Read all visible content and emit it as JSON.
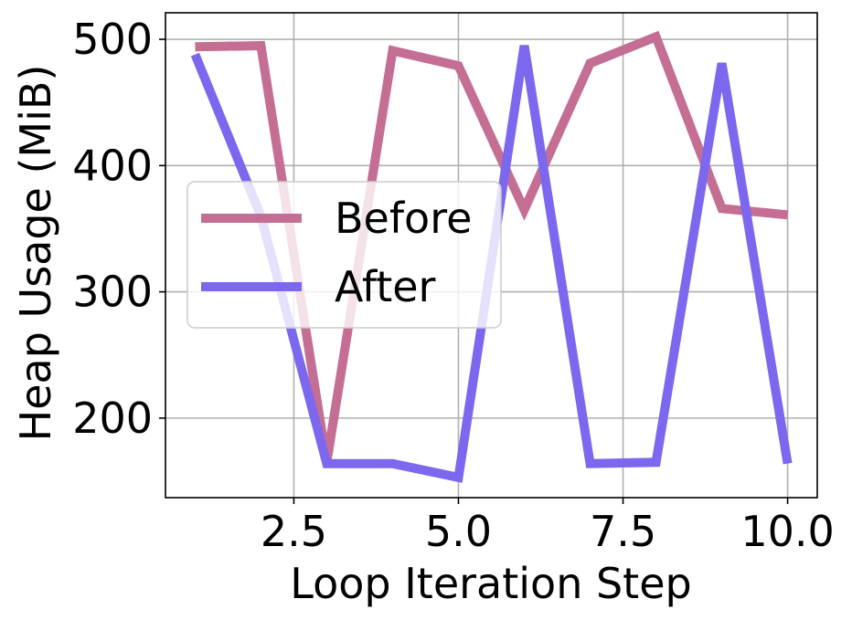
{
  "chart_data": {
    "type": "line",
    "title": "",
    "xlabel": "Loop Iteration Step",
    "ylabel": "Heap Usage (MiB)",
    "x": [
      1,
      2,
      3,
      4,
      5,
      6,
      7,
      8,
      9,
      10
    ],
    "xlim": [
      0.55,
      10.45
    ],
    "ylim": [
      137,
      521
    ],
    "xticks": [
      2.5,
      5.0,
      7.5,
      10.0
    ],
    "xtick_labels": [
      "2.5",
      "5.0",
      "7.5",
      "10.0"
    ],
    "yticks": [
      200,
      300,
      400,
      500
    ],
    "ytick_labels": [
      "200",
      "300",
      "400",
      "500"
    ],
    "grid": true,
    "legend_position": "center-left",
    "series": [
      {
        "name": "Before",
        "color": "#c46e94",
        "values": [
          494,
          495,
          165,
          491,
          479,
          365,
          481,
          502,
          366,
          361
        ]
      },
      {
        "name": "After",
        "color": "#7b68ee",
        "values": [
          488,
          360,
          164,
          164,
          153,
          495,
          164,
          165,
          481,
          164
        ]
      }
    ]
  }
}
